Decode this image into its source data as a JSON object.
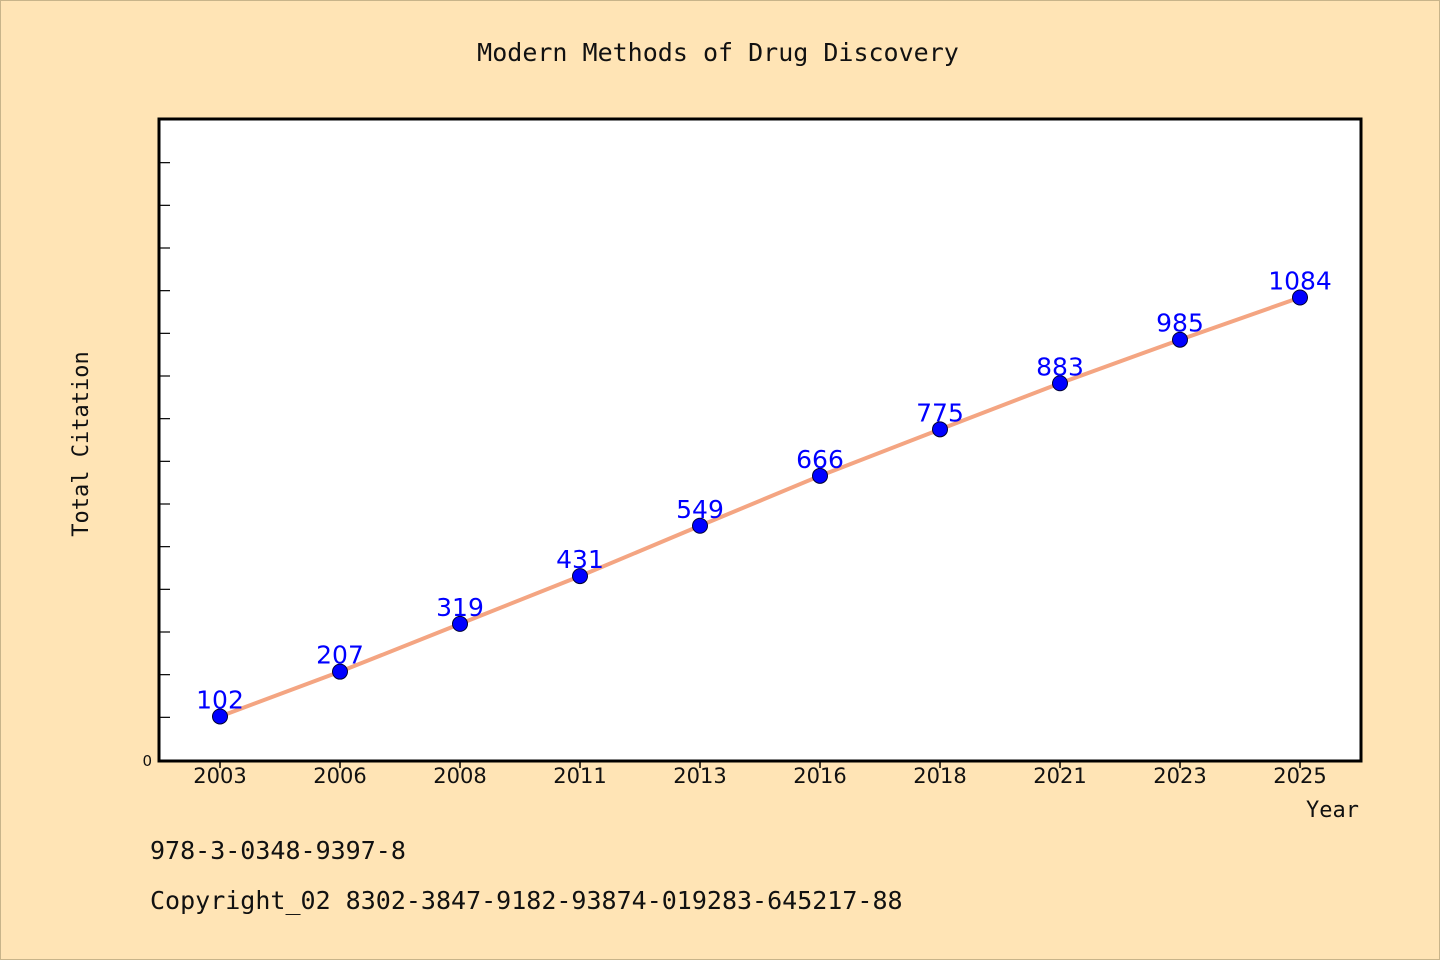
{
  "chart_data": {
    "type": "line",
    "title": "Modern Methods of Drug Discovery",
    "xlabel": "Year",
    "ylabel": "Total Citation",
    "categories": [
      "2003",
      "2006",
      "2008",
      "2011",
      "2013",
      "2016",
      "2018",
      "2021",
      "2023",
      "2025"
    ],
    "series": [
      {
        "values": [
          102,
          207,
          319,
          431,
          549,
          666,
          775,
          883,
          985,
          1084
        ]
      }
    ],
    "ylim": [
      0,
      1500
    ],
    "y_tick_labels": [
      "0"
    ],
    "data_labels": true,
    "grid": false,
    "colors": {
      "line": "#f4a582",
      "marker": "#0000ff",
      "label": "#0000ff",
      "background": "#ffe4b5",
      "plot": "#ffffff"
    }
  },
  "footer": {
    "isbn": "978-3-0348-9397-8",
    "copyright": "Copyright_02 8302-3847-9182-93874-019283-645217-88"
  }
}
